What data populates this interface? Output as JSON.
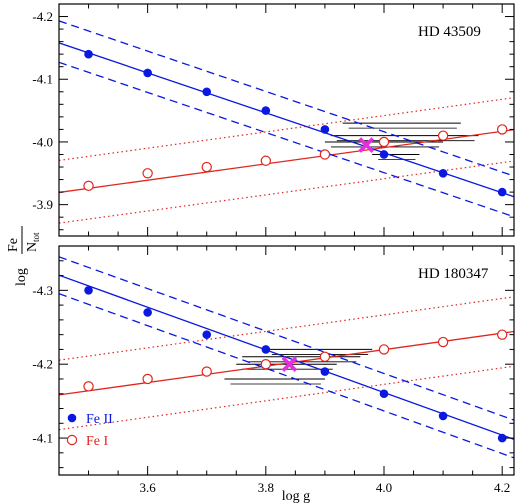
{
  "chart_data": {
    "type": "scatter",
    "xlabel": "log g",
    "ylabel": {
      "prefix": "log",
      "numerator": "Fe",
      "denominator_main": "N",
      "denominator_sub": "tot"
    },
    "x_ticks": [
      3.6,
      3.8,
      4.0,
      4.2
    ],
    "x_tick_labels": [
      "3.6",
      "3.8",
      "4.0",
      "4.2"
    ],
    "xlim": [
      3.45,
      4.22
    ],
    "legend": {
      "placement": "bottom-left of lower panel",
      "entries": [
        {
          "label": "Fe II",
          "marker": "filled-circle",
          "color": "#0a18e0"
        },
        {
          "label": "Fe I",
          "marker": "open-circle",
          "color": "#e0261d"
        }
      ]
    },
    "colors": {
      "fe2": "#0a18e0",
      "fe1": "#e0261d",
      "solution": "#e82ce0"
    },
    "panels": [
      {
        "label": "HD 43509",
        "ylim": [
          -4.22,
          -3.85
        ],
        "y_ticks": [
          -4.2,
          -4.1,
          -4.0,
          -3.9
        ],
        "y_tick_labels": [
          "-4.2",
          "-4.1",
          "-4.0",
          "-3.9"
        ],
        "x": [
          3.5,
          3.6,
          3.7,
          3.8,
          3.9,
          4.0,
          4.1,
          4.2
        ],
        "series": [
          {
            "name": "Fe II",
            "values": [
              -4.14,
              -4.11,
              -4.08,
              -4.05,
              -4.02,
              -3.98,
              -3.95,
              -3.92
            ],
            "fit": [
              -4.142,
              -3.919
            ],
            "band_upper": [
              -4.177,
              -3.952
            ],
            "band_lower": [
              -4.111,
              -3.887
            ]
          },
          {
            "name": "Fe I",
            "values": [
              -3.93,
              -3.95,
              -3.96,
              -3.97,
              -3.98,
              -4.0,
              -4.01,
              -4.02
            ],
            "fit": [
              -3.926,
              -4.017
            ],
            "band_upper": [
              -3.977,
              -4.068
            ],
            "band_lower": [
              -3.877,
              -3.967
            ]
          }
        ],
        "solution": {
          "logg": 3.97,
          "value": -3.995
        },
        "hatch": {
          "x_start": [
            3.9,
            3.98,
            3.91,
            3.93
          ],
          "x_end": [
            4.1,
            4.06,
            4.16,
            4.13
          ],
          "y": [
            -4.0,
            -3.98,
            -4.01,
            -4.03
          ]
        }
      },
      {
        "label": "HD 180347",
        "ylim": [
          -4.36,
          -4.05
        ],
        "y_ticks": [
          -4.3,
          -4.2,
          -4.1
        ],
        "y_tick_labels": [
          "-4.3",
          "-4.2",
          "-4.1"
        ],
        "x": [
          3.5,
          3.6,
          3.7,
          3.8,
          3.9,
          4.0,
          4.1,
          4.2
        ],
        "series": [
          {
            "name": "Fe II",
            "values": [
              -4.3,
              -4.27,
              -4.24,
              -4.22,
              -4.19,
              -4.16,
              -4.13,
              -4.1
            ],
            "fit": [
              -4.306,
              -4.104
            ],
            "band_upper": [
              -4.331,
              -4.13
            ],
            "band_lower": [
              -4.281,
              -4.079
            ]
          },
          {
            "name": "Fe I",
            "values": [
              -4.17,
              -4.18,
              -4.19,
              -4.2,
              -4.21,
              -4.22,
              -4.23,
              -4.24
            ],
            "fit": [
              -4.164,
              -4.242
            ],
            "band_upper": [
              -4.211,
              -4.289
            ],
            "band_lower": [
              -4.117,
              -4.195
            ]
          }
        ],
        "solution": {
          "logg": 3.84,
          "value": -4.2
        },
        "hatch": {
          "x_start": [
            3.73,
            3.75,
            3.76,
            3.8
          ],
          "x_end": [
            3.9,
            3.92,
            3.96,
            3.98
          ],
          "y": [
            -4.18,
            -4.2,
            -4.21,
            -4.22
          ]
        }
      }
    ]
  }
}
